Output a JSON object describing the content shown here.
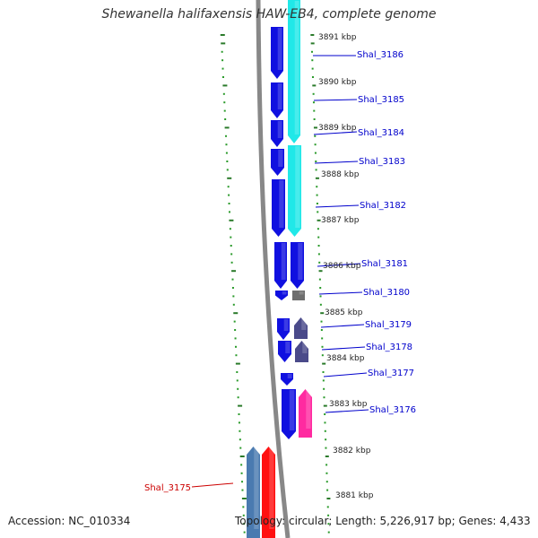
{
  "title": "Shewanella halifaxensis HAW-EB4, complete genome",
  "accession": "Accession: NC_010334",
  "topology": "Topology: circular; Length: 5,226,917 bp; Genes: 4,433",
  "colors": {
    "backbone": "#888888",
    "tick_major": "#2a7a2a",
    "tick_minor": "#2a9a2a",
    "gene_blue": "#1010e0",
    "gene_cyan": "#20e8e8",
    "gene_gray": "#6e6e6e",
    "gene_slate": "#4a4a8a",
    "gene_pink": "#ff2aa0",
    "gene_steel": "#4a7ab0",
    "gene_red": "#ff1010",
    "label_blue": "#0000cc",
    "label_red": "#cc0000"
  },
  "scale_labels": [
    {
      "text": "3891 kbp"
    },
    {
      "text": "3890 kbp"
    },
    {
      "text": "3889 kbp"
    },
    {
      "text": "3888 kbp"
    },
    {
      "text": "3887 kbp"
    },
    {
      "text": "3886 kbp"
    },
    {
      "text": "3885 kbp"
    },
    {
      "text": "3884 kbp"
    },
    {
      "text": "3883 kbp"
    },
    {
      "text": "3882 kbp"
    },
    {
      "text": "3881 kbp"
    }
  ],
  "gene_labels": [
    {
      "text": "Shal_3186",
      "color": "label_blue"
    },
    {
      "text": "Shal_3185",
      "color": "label_blue"
    },
    {
      "text": "Shal_3184",
      "color": "label_blue"
    },
    {
      "text": "Shal_3183",
      "color": "label_blue"
    },
    {
      "text": "Shal_3182",
      "color": "label_blue"
    },
    {
      "text": "Shal_3181",
      "color": "label_blue"
    },
    {
      "text": "Shal_3180",
      "color": "label_blue"
    },
    {
      "text": "Shal_3179",
      "color": "label_blue"
    },
    {
      "text": "Shal_3178",
      "color": "label_blue"
    },
    {
      "text": "Shal_3177",
      "color": "label_blue"
    },
    {
      "text": "Shal_3176",
      "color": "label_blue"
    },
    {
      "text": "Shal_3175",
      "color": "label_red"
    }
  ]
}
